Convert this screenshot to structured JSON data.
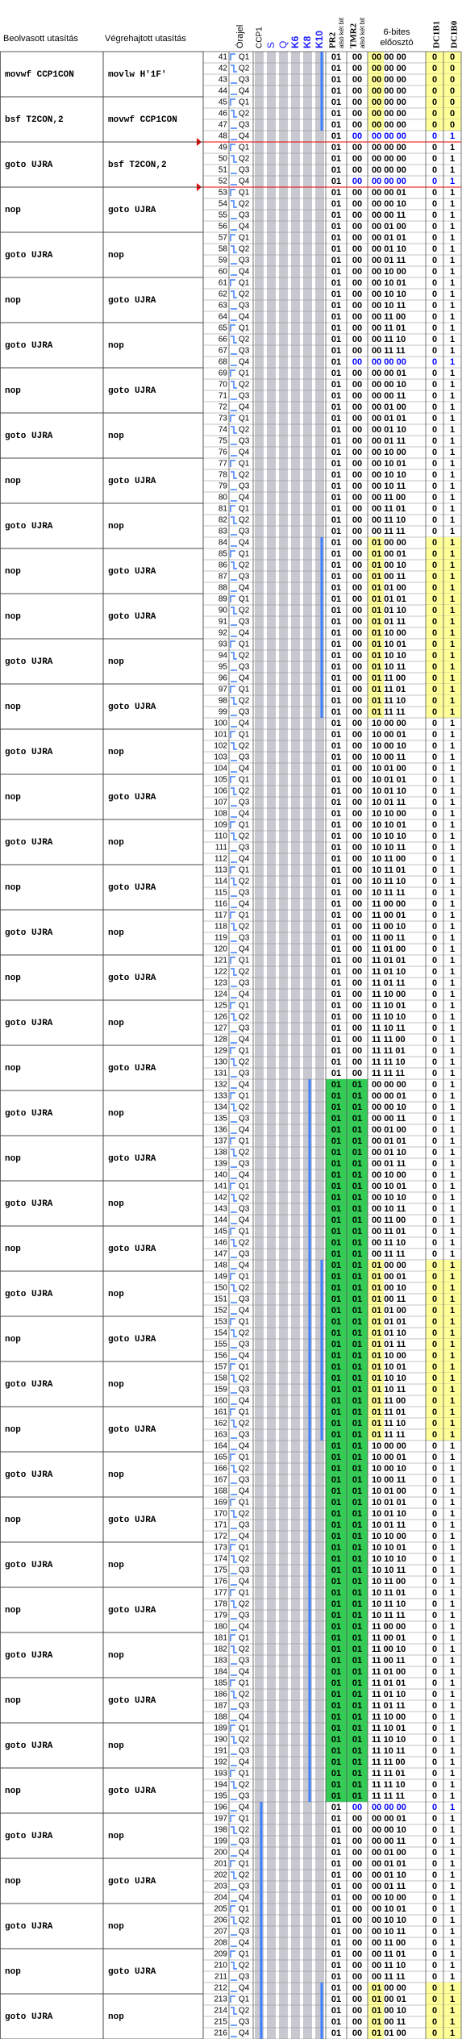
{
  "header": {
    "fetched": "Beolvasott utasítás",
    "executed": "Végrehajtott utasítás",
    "clock": "Órajel",
    "signals": [
      "CCP1",
      "S",
      "Q",
      "K6",
      "K8",
      "K10"
    ],
    "signal_colors": [
      "#000000",
      "#1a1aff",
      "#1a1aff",
      "#1a1aff",
      "#1a1aff",
      "#1a1aff"
    ],
    "pr2": {
      "name": "PR2",
      "note": "alsó két bit"
    },
    "tmr2": {
      "name": "TMR2",
      "note": "alsó két bit"
    },
    "prescaler": [
      "6-bites",
      "előosztó"
    ],
    "dc1b1": "DC1B1",
    "dc1b0": "DC1B0"
  },
  "colors": {
    "match": "#ffff99",
    "equal": "#33cc55",
    "changed": "#0000ff",
    "wave": "#3d7fff"
  },
  "blue_rows": [
    48,
    52,
    68,
    196
  ],
  "instructions": [
    [
      "movwf CCP1CON",
      "movlw H'1F'"
    ],
    [
      "bsf T2CON,2",
      "movwf CCP1CON"
    ],
    [
      "goto UJRA",
      "bsf T2CON,2"
    ],
    [
      "nop",
      "goto UJRA"
    ],
    [
      "goto UJRA",
      "nop"
    ],
    [
      "nop",
      "goto UJRA"
    ],
    [
      "goto UJRA",
      "nop"
    ],
    [
      "nop",
      "goto UJRA"
    ],
    [
      "goto UJRA",
      "nop"
    ],
    [
      "nop",
      "goto UJRA"
    ],
    [
      "goto UJRA",
      "nop"
    ],
    [
      "nop",
      "goto UJRA"
    ],
    [
      "nop",
      "goto UJRA"
    ],
    [
      "goto UJRA",
      "nop"
    ],
    [
      "nop",
      "goto UJRA"
    ],
    [
      "goto UJRA",
      "nop"
    ],
    [
      "nop",
      "goto UJRA"
    ],
    [
      "goto UJRA",
      "nop"
    ],
    [
      "nop",
      "goto UJRA"
    ],
    [
      "goto UJRA",
      "nop"
    ],
    [
      "nop",
      "goto UJRA"
    ],
    [
      "goto UJRA",
      "nop"
    ],
    [
      "nop",
      "goto UJRA"
    ],
    [
      "goto UJRA",
      "nop"
    ],
    [
      "nop",
      "goto UJRA"
    ],
    [
      "goto UJRA",
      "nop"
    ],
    [
      "nop",
      "goto UJRA"
    ],
    [
      "goto UJRA",
      "nop"
    ],
    [
      "nop",
      "goto UJRA"
    ],
    [
      "goto UJRA",
      "nop"
    ],
    [
      "nop",
      "goto UJRA"
    ],
    [
      "goto UJRA",
      "nop"
    ],
    [
      "nop",
      "goto UJRA"
    ],
    [
      "goto UJRA",
      "nop"
    ],
    [
      "nop",
      "goto UJRA"
    ],
    [
      "goto UJRA",
      "nop"
    ],
    [
      "nop",
      "goto UJRA"
    ],
    [
      "goto UJRA",
      "nop"
    ],
    [
      "nop",
      "goto UJRA"
    ],
    [
      "goto UJRA",
      "nop"
    ],
    [
      "nop",
      "goto UJRA"
    ],
    [
      "goto UJRA",
      "nop"
    ],
    [
      "nop",
      "goto UJRA"
    ],
    [
      "goto UJRA",
      "nop"
    ]
  ],
  "rows": [
    [
      41,
      "Q1",
      "01",
      "00",
      "00 00 00",
      0,
      0
    ],
    [
      42,
      "Q2",
      "01",
      "00",
      "00 00 00",
      0,
      0
    ],
    [
      43,
      "Q3",
      "01",
      "00",
      "00 00 00",
      0,
      0
    ],
    [
      44,
      "Q4",
      "01",
      "00",
      "00 00 00",
      0,
      0
    ],
    [
      45,
      "Q1",
      "01",
      "00",
      "00 00 00",
      0,
      0
    ],
    [
      46,
      "Q2",
      "01",
      "00",
      "00 00 00",
      0,
      0
    ],
    [
      47,
      "Q3",
      "01",
      "00",
      "00 00 00",
      0,
      0
    ],
    [
      48,
      "Q4",
      "01",
      "00",
      "00 00 00",
      0,
      1
    ],
    [
      49,
      "Q1",
      "01",
      "00",
      "00 00 00",
      0,
      1
    ],
    [
      50,
      "Q2",
      "01",
      "00",
      "00 00 00",
      0,
      1
    ],
    [
      51,
      "Q3",
      "01",
      "00",
      "00 00 00",
      0,
      1
    ],
    [
      52,
      "Q4",
      "01",
      "00",
      "00 00 00",
      0,
      1
    ],
    [
      53,
      "Q1",
      "01",
      "00",
      "00 00 01",
      0,
      1
    ],
    [
      54,
      "Q2",
      "01",
      "00",
      "00 00 10",
      0,
      1
    ],
    [
      55,
      "Q3",
      "01",
      "00",
      "00 00 11",
      0,
      1
    ],
    [
      56,
      "Q4",
      "01",
      "00",
      "00 01 00",
      0,
      1
    ],
    [
      57,
      "Q1",
      "01",
      "00",
      "00 01 01",
      0,
      1
    ],
    [
      58,
      "Q2",
      "01",
      "00",
      "00 01 10",
      0,
      1
    ],
    [
      59,
      "Q3",
      "01",
      "00",
      "00 01 11",
      0,
      1
    ],
    [
      60,
      "Q4",
      "01",
      "00",
      "00 10 00",
      0,
      1
    ],
    [
      61,
      "Q1",
      "01",
      "00",
      "00 10 01",
      0,
      1
    ],
    [
      62,
      "Q2",
      "01",
      "00",
      "00 10 10",
      0,
      1
    ],
    [
      63,
      "Q3",
      "01",
      "00",
      "00 10 11",
      0,
      1
    ],
    [
      64,
      "Q4",
      "01",
      "00",
      "00 11 00",
      0,
      1
    ],
    [
      65,
      "Q1",
      "01",
      "00",
      "00 11 01",
      0,
      1
    ],
    [
      66,
      "Q2",
      "01",
      "00",
      "00 11 10",
      0,
      1
    ],
    [
      67,
      "Q3",
      "01",
      "00",
      "00 11 11",
      0,
      1
    ],
    [
      68,
      "Q4",
      "01",
      "00",
      "00 00 00",
      0,
      1
    ],
    [
      69,
      "Q1",
      "01",
      "00",
      "00 00 01",
      0,
      1
    ],
    [
      70,
      "Q2",
      "01",
      "00",
      "00 00 10",
      0,
      1
    ],
    [
      71,
      "Q3",
      "01",
      "00",
      "00 00 11",
      0,
      1
    ],
    [
      72,
      "Q4",
      "01",
      "00",
      "00 01 00",
      0,
      1
    ],
    [
      73,
      "Q1",
      "01",
      "00",
      "00 01 01",
      0,
      1
    ],
    [
      74,
      "Q2",
      "01",
      "00",
      "00 01 10",
      0,
      1
    ],
    [
      75,
      "Q3",
      "01",
      "00",
      "00 01 11",
      0,
      1
    ],
    [
      76,
      "Q4",
      "01",
      "00",
      "00 10 00",
      0,
      1
    ],
    [
      77,
      "Q1",
      "01",
      "00",
      "00 10 01",
      0,
      1
    ],
    [
      78,
      "Q2",
      "01",
      "00",
      "00 10 10",
      0,
      1
    ],
    [
      79,
      "Q3",
      "01",
      "00",
      "00 10 11",
      0,
      1
    ],
    [
      80,
      "Q4",
      "01",
      "00",
      "00 11 00",
      0,
      1
    ],
    [
      81,
      "Q1",
      "01",
      "00",
      "00 11 01",
      0,
      1
    ],
    [
      82,
      "Q2",
      "01",
      "00",
      "00 11 10",
      0,
      1
    ],
    [
      83,
      "Q3",
      "01",
      "00",
      "00 11 11",
      0,
      1
    ],
    [
      84,
      "Q4",
      "01",
      "00",
      "01 00 00",
      0,
      1
    ],
    [
      85,
      "Q1",
      "01",
      "00",
      "01 00 01",
      0,
      1
    ],
    [
      86,
      "Q2",
      "01",
      "00",
      "01 00 10",
      0,
      1
    ],
    [
      87,
      "Q3",
      "01",
      "00",
      "01 00 11",
      0,
      1
    ],
    [
      88,
      "Q4",
      "01",
      "00",
      "01 01 00",
      0,
      1
    ],
    [
      89,
      "Q1",
      "01",
      "00",
      "01 01 01",
      0,
      1
    ],
    [
      90,
      "Q2",
      "01",
      "00",
      "01 01 10",
      0,
      1
    ],
    [
      91,
      "Q3",
      "01",
      "00",
      "01 01 11",
      0,
      1
    ],
    [
      92,
      "Q4",
      "01",
      "00",
      "01 10 00",
      0,
      1
    ],
    [
      93,
      "Q1",
      "01",
      "00",
      "01 10 01",
      0,
      1
    ],
    [
      94,
      "Q2",
      "01",
      "00",
      "01 10 10",
      0,
      1
    ],
    [
      95,
      "Q3",
      "01",
      "00",
      "01 10 11",
      0,
      1
    ],
    [
      96,
      "Q4",
      "01",
      "00",
      "01 11 00",
      0,
      1
    ],
    [
      97,
      "Q1",
      "01",
      "00",
      "01 11 01",
      0,
      1
    ],
    [
      98,
      "Q2",
      "01",
      "00",
      "01 11 10",
      0,
      1
    ],
    [
      99,
      "Q3",
      "01",
      "00",
      "01 11 11",
      0,
      1
    ],
    [
      100,
      "Q4",
      "01",
      "00",
      "10 00 00",
      0,
      1
    ],
    [
      101,
      "Q1",
      "01",
      "00",
      "10 00 01",
      0,
      1
    ],
    [
      102,
      "Q2",
      "01",
      "00",
      "10 00 10",
      0,
      1
    ],
    [
      103,
      "Q3",
      "01",
      "00",
      "10 00 11",
      0,
      1
    ],
    [
      104,
      "Q4",
      "01",
      "00",
      "10 01 00",
      0,
      1
    ],
    [
      105,
      "Q1",
      "01",
      "00",
      "10 01 01",
      0,
      1
    ],
    [
      106,
      "Q2",
      "01",
      "00",
      "10 01 10",
      0,
      1
    ],
    [
      107,
      "Q3",
      "01",
      "00",
      "10 01 11",
      0,
      1
    ],
    [
      108,
      "Q4",
      "01",
      "00",
      "10 10 00",
      0,
      1
    ],
    [
      109,
      "Q1",
      "01",
      "00",
      "10 10 01",
      0,
      1
    ],
    [
      110,
      "Q2",
      "01",
      "00",
      "10 10 10",
      0,
      1
    ],
    [
      111,
      "Q3",
      "01",
      "00",
      "10 10 11",
      0,
      1
    ],
    [
      112,
      "Q4",
      "01",
      "00",
      "10 11 00",
      0,
      1
    ],
    [
      113,
      "Q1",
      "01",
      "00",
      "10 11 01",
      0,
      1
    ],
    [
      114,
      "Q2",
      "01",
      "00",
      "10 11 10",
      0,
      1
    ],
    [
      115,
      "Q3",
      "01",
      "00",
      "10 11 11",
      0,
      1
    ],
    [
      116,
      "Q4",
      "01",
      "00",
      "11 00 00",
      0,
      1
    ],
    [
      117,
      "Q1",
      "01",
      "00",
      "11 00 01",
      0,
      1
    ],
    [
      118,
      "Q2",
      "01",
      "00",
      "11 00 10",
      0,
      1
    ],
    [
      119,
      "Q3",
      "01",
      "00",
      "11 00 11",
      0,
      1
    ],
    [
      120,
      "Q4",
      "01",
      "00",
      "11 01 00",
      0,
      1
    ],
    [
      121,
      "Q1",
      "01",
      "00",
      "11 01 01",
      0,
      1
    ],
    [
      122,
      "Q2",
      "01",
      "00",
      "11 01 10",
      0,
      1
    ],
    [
      123,
      "Q3",
      "01",
      "00",
      "11 01 11",
      0,
      1
    ],
    [
      124,
      "Q4",
      "01",
      "00",
      "11 10 00",
      0,
      1
    ],
    [
      125,
      "Q1",
      "01",
      "00",
      "11 10 01",
      0,
      1
    ],
    [
      126,
      "Q2",
      "01",
      "00",
      "11 10 10",
      0,
      1
    ],
    [
      127,
      "Q3",
      "01",
      "00",
      "11 10 11",
      0,
      1
    ],
    [
      128,
      "Q4",
      "01",
      "00",
      "11 11 00",
      0,
      1
    ],
    [
      129,
      "Q1",
      "01",
      "00",
      "11 11 01",
      0,
      1
    ],
    [
      130,
      "Q2",
      "01",
      "00",
      "11 11 10",
      0,
      1
    ],
    [
      131,
      "Q3",
      "01",
      "00",
      "11 11 11",
      0,
      1
    ],
    [
      132,
      "Q4",
      "01",
      "01",
      "00 00 00",
      0,
      1
    ],
    [
      133,
      "Q1",
      "01",
      "01",
      "00 00 01",
      0,
      1
    ],
    [
      134,
      "Q2",
      "01",
      "01",
      "00 00 10",
      0,
      1
    ],
    [
      135,
      "Q3",
      "01",
      "01",
      "00 00 11",
      0,
      1
    ],
    [
      136,
      "Q4",
      "01",
      "01",
      "00 01 00",
      0,
      1
    ],
    [
      137,
      "Q1",
      "01",
      "01",
      "00 01 01",
      0,
      1
    ],
    [
      138,
      "Q2",
      "01",
      "01",
      "00 01 10",
      0,
      1
    ],
    [
      139,
      "Q3",
      "01",
      "01",
      "00 01 11",
      0,
      1
    ],
    [
      140,
      "Q4",
      "01",
      "01",
      "00 10 00",
      0,
      1
    ],
    [
      141,
      "Q1",
      "01",
      "01",
      "00 10 01",
      0,
      1
    ],
    [
      142,
      "Q2",
      "01",
      "01",
      "00 10 10",
      0,
      1
    ],
    [
      143,
      "Q3",
      "01",
      "01",
      "00 10 11",
      0,
      1
    ],
    [
      144,
      "Q4",
      "01",
      "01",
      "00 11 00",
      0,
      1
    ],
    [
      145,
      "Q1",
      "01",
      "01",
      "00 11 01",
      0,
      1
    ],
    [
      146,
      "Q2",
      "01",
      "01",
      "00 11 10",
      0,
      1
    ],
    [
      147,
      "Q3",
      "01",
      "01",
      "00 11 11",
      0,
      1
    ],
    [
      148,
      "Q4",
      "01",
      "01",
      "01 00 00",
      0,
      1
    ],
    [
      149,
      "Q1",
      "01",
      "01",
      "01 00 01",
      0,
      1
    ],
    [
      150,
      "Q2",
      "01",
      "01",
      "01 00 10",
      0,
      1
    ],
    [
      151,
      "Q3",
      "01",
      "01",
      "01 00 11",
      0,
      1
    ],
    [
      152,
      "Q4",
      "01",
      "01",
      "01 01 00",
      0,
      1
    ],
    [
      153,
      "Q1",
      "01",
      "01",
      "01 01 01",
      0,
      1
    ],
    [
      154,
      "Q2",
      "01",
      "01",
      "01 01 10",
      0,
      1
    ],
    [
      155,
      "Q3",
      "01",
      "01",
      "01 01 11",
      0,
      1
    ],
    [
      156,
      "Q4",
      "01",
      "01",
      "01 10 00",
      0,
      1
    ],
    [
      157,
      "Q1",
      "01",
      "01",
      "01 10 01",
      0,
      1
    ],
    [
      158,
      "Q2",
      "01",
      "01",
      "01 10 10",
      0,
      1
    ],
    [
      159,
      "Q3",
      "01",
      "01",
      "01 10 11",
      0,
      1
    ],
    [
      160,
      "Q4",
      "01",
      "01",
      "01 11 00",
      0,
      1
    ],
    [
      161,
      "Q1",
      "01",
      "01",
      "01 11 01",
      0,
      1
    ],
    [
      162,
      "Q2",
      "01",
      "01",
      "01 11 10",
      0,
      1
    ],
    [
      163,
      "Q3",
      "01",
      "01",
      "01 11 11",
      0,
      1
    ],
    [
      164,
      "Q4",
      "01",
      "01",
      "10 00 00",
      0,
      1
    ],
    [
      165,
      "Q1",
      "01",
      "01",
      "10 00 01",
      0,
      1
    ],
    [
      166,
      "Q2",
      "01",
      "01",
      "10 00 10",
      0,
      1
    ],
    [
      167,
      "Q3",
      "01",
      "01",
      "10 00 11",
      0,
      1
    ],
    [
      168,
      "Q4",
      "01",
      "01",
      "10 01 00",
      0,
      1
    ],
    [
      169,
      "Q1",
      "01",
      "01",
      "10 01 01",
      0,
      1
    ],
    [
      170,
      "Q2",
      "01",
      "01",
      "10 01 10",
      0,
      1
    ],
    [
      171,
      "Q3",
      "01",
      "01",
      "10 01 11",
      0,
      1
    ],
    [
      172,
      "Q4",
      "01",
      "01",
      "10 10 00",
      0,
      1
    ],
    [
      173,
      "Q1",
      "01",
      "01",
      "10 10 01",
      0,
      1
    ],
    [
      174,
      "Q2",
      "01",
      "01",
      "10 10 10",
      0,
      1
    ],
    [
      175,
      "Q3",
      "01",
      "01",
      "10 10 11",
      0,
      1
    ],
    [
      176,
      "Q4",
      "01",
      "01",
      "10 11 00",
      0,
      1
    ],
    [
      177,
      "Q1",
      "01",
      "01",
      "10 11 01",
      0,
      1
    ],
    [
      178,
      "Q2",
      "01",
      "01",
      "10 11 10",
      0,
      1
    ],
    [
      179,
      "Q3",
      "01",
      "01",
      "10 11 11",
      0,
      1
    ],
    [
      180,
      "Q4",
      "01",
      "01",
      "11 00 00",
      0,
      1
    ],
    [
      181,
      "Q1",
      "01",
      "01",
      "11 00 01",
      0,
      1
    ],
    [
      182,
      "Q2",
      "01",
      "01",
      "11 00 10",
      0,
      1
    ],
    [
      183,
      "Q3",
      "01",
      "01",
      "11 00 11",
      0,
      1
    ],
    [
      184,
      "Q4",
      "01",
      "01",
      "11 01 00",
      0,
      1
    ],
    [
      185,
      "Q1",
      "01",
      "01",
      "11 01 01",
      0,
      1
    ],
    [
      186,
      "Q2",
      "01",
      "01",
      "11 01 10",
      0,
      1
    ],
    [
      187,
      "Q3",
      "01",
      "01",
      "11 01 11",
      0,
      1
    ],
    [
      188,
      "Q4",
      "01",
      "01",
      "11 10 00",
      0,
      1
    ],
    [
      189,
      "Q1",
      "01",
      "01",
      "11 10 01",
      0,
      1
    ],
    [
      190,
      "Q2",
      "01",
      "01",
      "11 10 10",
      0,
      1
    ],
    [
      191,
      "Q3",
      "01",
      "01",
      "11 10 11",
      0,
      1
    ],
    [
      192,
      "Q4",
      "01",
      "01",
      "11 11 00",
      0,
      1
    ],
    [
      193,
      "Q1",
      "01",
      "01",
      "11 11 01",
      0,
      1
    ],
    [
      194,
      "Q2",
      "01",
      "01",
      "11 11 10",
      0,
      1
    ],
    [
      195,
      "Q3",
      "01",
      "01",
      "11 11 11",
      0,
      1
    ],
    [
      196,
      "Q4",
      "01",
      "00",
      "00 00 00",
      0,
      1
    ],
    [
      197,
      "Q1",
      "01",
      "00",
      "00 00 01",
      0,
      1
    ],
    [
      198,
      "Q2",
      "01",
      "00",
      "00 00 10",
      0,
      1
    ],
    [
      199,
      "Q3",
      "01",
      "00",
      "00 00 11",
      0,
      1
    ],
    [
      200,
      "Q4",
      "01",
      "00",
      "00 01 00",
      0,
      1
    ],
    [
      201,
      "Q1",
      "01",
      "00",
      "00 01 01",
      0,
      1
    ],
    [
      202,
      "Q2",
      "01",
      "00",
      "00 01 10",
      0,
      1
    ],
    [
      203,
      "Q3",
      "01",
      "00",
      "00 01 11",
      0,
      1
    ],
    [
      204,
      "Q4",
      "01",
      "00",
      "00 10 00",
      0,
      1
    ],
    [
      205,
      "Q1",
      "01",
      "00",
      "00 10 01",
      0,
      1
    ],
    [
      206,
      "Q2",
      "01",
      "00",
      "00 10 10",
      0,
      1
    ],
    [
      207,
      "Q3",
      "01",
      "00",
      "00 10 11",
      0,
      1
    ],
    [
      208,
      "Q4",
      "01",
      "00",
      "00 11 00",
      0,
      1
    ],
    [
      209,
      "Q1",
      "01",
      "00",
      "00 11 01",
      0,
      1
    ],
    [
      210,
      "Q2",
      "01",
      "00",
      "00 11 10",
      0,
      1
    ],
    [
      211,
      "Q3",
      "01",
      "00",
      "00 11 11",
      0,
      1
    ],
    [
      212,
      "Q4",
      "01",
      "00",
      "01 00 00",
      0,
      1
    ],
    [
      213,
      "Q1",
      "01",
      "00",
      "01 00 01",
      0,
      1
    ],
    [
      214,
      "Q2",
      "01",
      "00",
      "01 00 10",
      0,
      1
    ],
    [
      215,
      "Q3",
      "01",
      "00",
      "01 00 11",
      0,
      1
    ],
    [
      216,
      "Q4",
      "01",
      "00",
      "01 01 00",
      0,
      1
    ]
  ]
}
